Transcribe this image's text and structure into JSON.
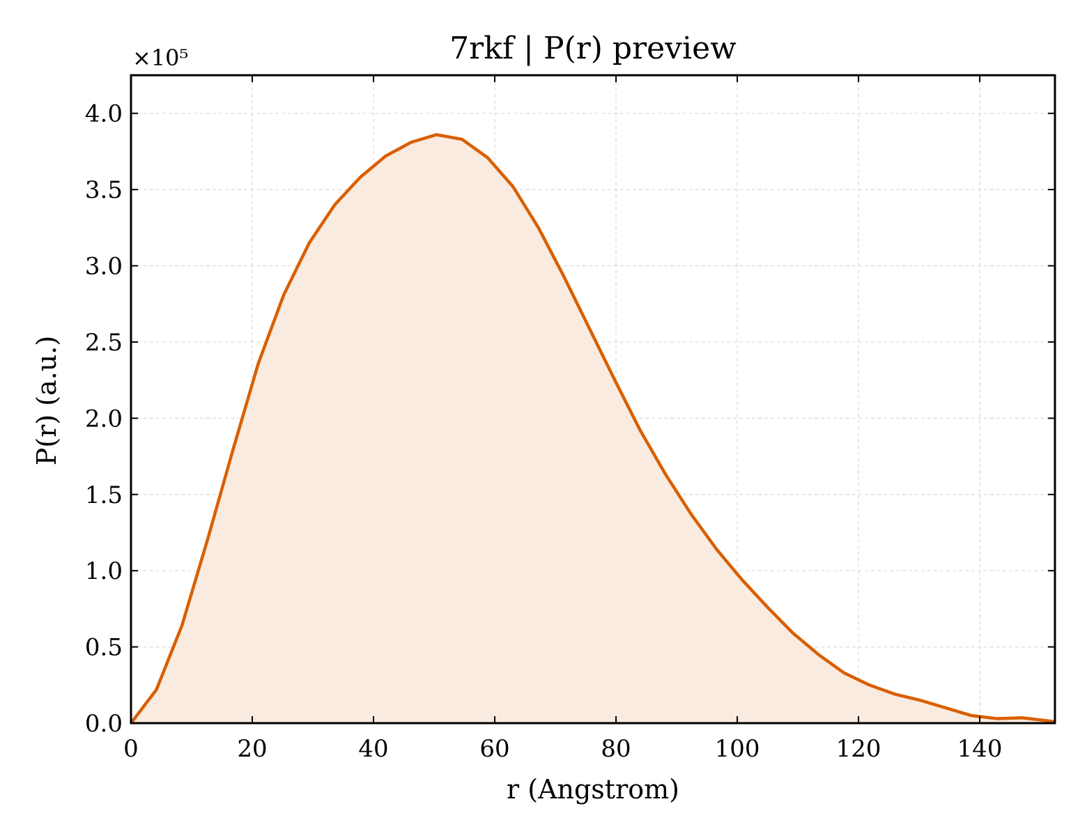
{
  "chart_data": {
    "type": "area",
    "title": "7rkf | P(r) preview",
    "xlabel": "r (Angstrom)",
    "ylabel": "P(r) (a.u.)",
    "y_offset_label": "×10⁵",
    "y_scale": 100000,
    "xlim": [
      0,
      152.4
    ],
    "ylim": [
      0,
      4.25
    ],
    "x_ticks": [
      0,
      20,
      40,
      60,
      80,
      100,
      120,
      140
    ],
    "x_tick_labels": [
      "0",
      "20",
      "40",
      "60",
      "80",
      "100",
      "120",
      "140"
    ],
    "y_ticks": [
      0,
      0.5,
      1.0,
      1.5,
      2.0,
      2.5,
      3.0,
      3.5,
      4.0
    ],
    "y_tick_labels": [
      "0.0",
      "0.5",
      "1.0",
      "1.5",
      "2.0",
      "2.5",
      "3.0",
      "3.5",
      "4.0"
    ],
    "grid": true,
    "line_color": "#d95f02",
    "fill_color": "#f9ebe0",
    "series": [
      {
        "x": [
          0,
          4.2,
          8.4,
          12.6,
          16.8,
          21.0,
          25.2,
          29.4,
          33.6,
          37.8,
          42.0,
          46.2,
          50.4,
          54.6,
          58.8,
          63.0,
          67.2,
          71.4,
          75.6,
          79.8,
          84.0,
          88.2,
          92.4,
          96.6,
          100.8,
          105.0,
          109.2,
          113.4,
          117.6,
          121.8,
          126.0,
          130.2,
          134.4,
          138.6,
          142.8,
          147.0,
          152.4
        ],
        "y": [
          0,
          0.22,
          0.64,
          1.2,
          1.79,
          2.36,
          2.81,
          3.15,
          3.4,
          3.58,
          3.72,
          3.81,
          3.86,
          3.83,
          3.71,
          3.52,
          3.25,
          2.93,
          2.59,
          2.25,
          1.92,
          1.63,
          1.37,
          1.14,
          0.94,
          0.76,
          0.59,
          0.45,
          0.33,
          0.25,
          0.19,
          0.15,
          0.1,
          0.05,
          0.03,
          0.035,
          0.01
        ]
      }
    ]
  }
}
